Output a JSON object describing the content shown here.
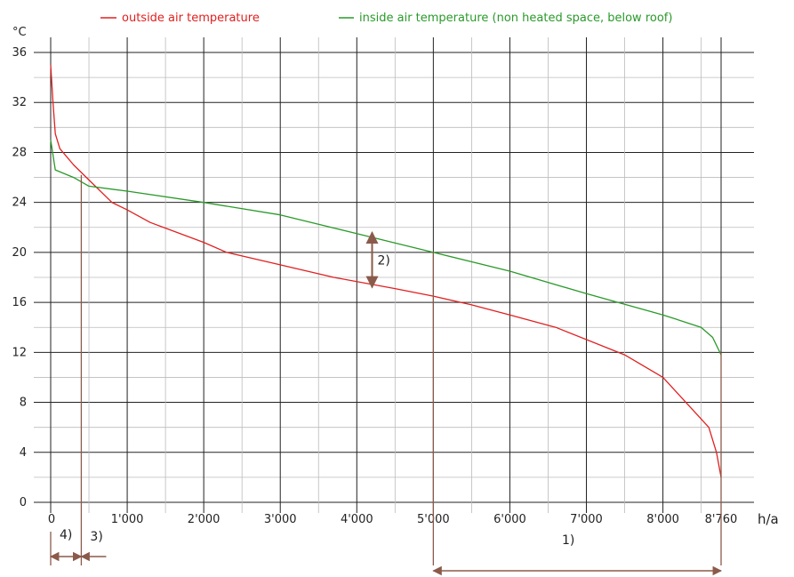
{
  "chart_data": {
    "type": "line",
    "ylabel": "°C",
    "xlabel": "h/a",
    "ylim": [
      0,
      36
    ],
    "xlim": [
      0,
      8760
    ],
    "yticks": [
      0,
      4,
      8,
      12,
      16,
      20,
      24,
      28,
      32,
      36
    ],
    "xticks": [
      {
        "value": 0,
        "label": "0"
      },
      {
        "value": 1000,
        "label": "1'000"
      },
      {
        "value": 2000,
        "label": "2'000"
      },
      {
        "value": 3000,
        "label": "3'000"
      },
      {
        "value": 4000,
        "label": "4'000"
      },
      {
        "value": 5000,
        "label": "5'000"
      },
      {
        "value": 6000,
        "label": "6'000"
      },
      {
        "value": 7000,
        "label": "7'000"
      },
      {
        "value": 8000,
        "label": "8'000"
      },
      {
        "value": 8760,
        "label": "8'760"
      }
    ],
    "grid": true,
    "legend_position": "top",
    "series": [
      {
        "name": "outside air temperature",
        "color": "#e02020",
        "points": [
          [
            0,
            35
          ],
          [
            30,
            32
          ],
          [
            60,
            29.5
          ],
          [
            120,
            28.3
          ],
          [
            300,
            27
          ],
          [
            500,
            25.8
          ],
          [
            800,
            24
          ],
          [
            1000,
            23.4
          ],
          [
            1300,
            22.4
          ],
          [
            2000,
            20.8
          ],
          [
            2300,
            20
          ],
          [
            3000,
            19
          ],
          [
            3700,
            18
          ],
          [
            4500,
            17.1
          ],
          [
            5000,
            16.5
          ],
          [
            5500,
            15.8
          ],
          [
            6000,
            15
          ],
          [
            6600,
            14
          ],
          [
            7500,
            11.8
          ],
          [
            8000,
            10
          ],
          [
            8300,
            8
          ],
          [
            8600,
            6
          ],
          [
            8700,
            4
          ],
          [
            8760,
            2
          ]
        ]
      },
      {
        "name": "inside air temperature (non heated space, below roof)",
        "color": "#2a9a2a",
        "points": [
          [
            0,
            29
          ],
          [
            60,
            26.6
          ],
          [
            300,
            26
          ],
          [
            500,
            25.3
          ],
          [
            1000,
            24.9
          ],
          [
            2000,
            24
          ],
          [
            3000,
            23
          ],
          [
            4000,
            21.5
          ],
          [
            5000,
            20
          ],
          [
            6000,
            18.5
          ],
          [
            7000,
            16.7
          ],
          [
            8000,
            15
          ],
          [
            8500,
            14
          ],
          [
            8650,
            13.2
          ],
          [
            8760,
            11.8
          ]
        ]
      }
    ],
    "annotations": [
      {
        "label": "1)",
        "from": 5000,
        "to": 8760
      },
      {
        "label": "2)",
        "y_from": 17.2,
        "y_to": 21.6,
        "x": 4200
      },
      {
        "label": "3)",
        "from": 400,
        "to": 700
      },
      {
        "label": "4)",
        "from": 0,
        "to": 400
      }
    ],
    "marker_lines": [
      400,
      5000,
      8760
    ],
    "annotation_color": "#8b5a4a"
  }
}
